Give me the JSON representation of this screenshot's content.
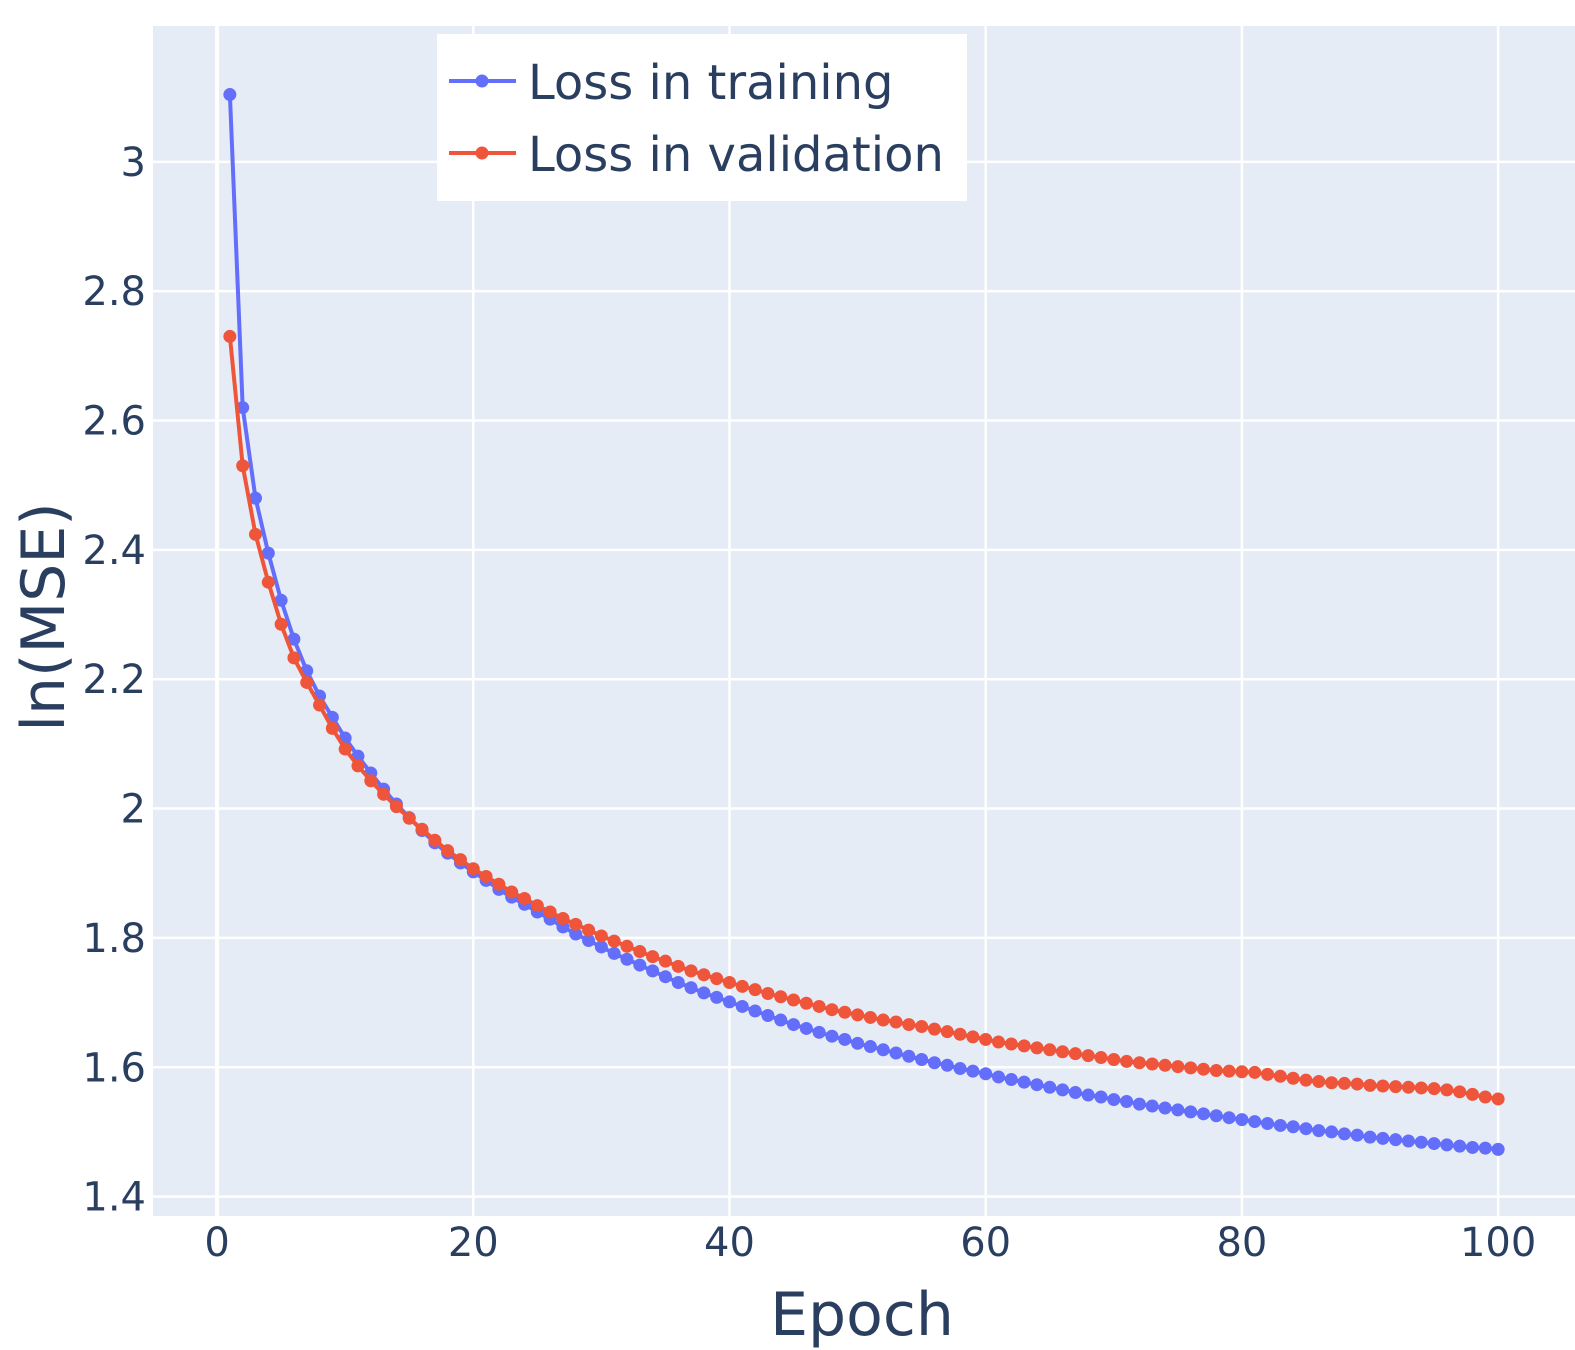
{
  "chart_data": {
    "type": "line",
    "xlabel": "Epoch",
    "ylabel": "ln(MSE)",
    "xlim": [
      -5,
      106
    ],
    "ylim": [
      1.37,
      3.21
    ],
    "x_ticks": [
      0,
      20,
      40,
      60,
      80,
      100
    ],
    "x_tick_labels": [
      "0",
      "20",
      "40",
      "60",
      "80",
      "100"
    ],
    "y_ticks": [
      1.4,
      1.6,
      1.8,
      2.0,
      2.2,
      2.4,
      2.6,
      2.8,
      3.0
    ],
    "y_tick_labels": [
      "1.4",
      "1.6",
      "1.8",
      "2",
      "2.2",
      "2.4",
      "2.6",
      "2.8",
      "3"
    ],
    "grid": true,
    "legend_position": "top-center",
    "x": [
      1,
      2,
      3,
      4,
      5,
      6,
      7,
      8,
      9,
      10,
      11,
      12,
      13,
      14,
      15,
      16,
      17,
      18,
      19,
      20,
      21,
      22,
      23,
      24,
      25,
      26,
      27,
      28,
      29,
      30,
      31,
      32,
      33,
      34,
      35,
      36,
      37,
      38,
      39,
      40,
      41,
      42,
      43,
      44,
      45,
      46,
      47,
      48,
      49,
      50,
      51,
      52,
      53,
      54,
      55,
      56,
      57,
      58,
      59,
      60,
      61,
      62,
      63,
      64,
      65,
      66,
      67,
      68,
      69,
      70,
      71,
      72,
      73,
      74,
      75,
      76,
      77,
      78,
      79,
      80,
      81,
      82,
      83,
      84,
      85,
      86,
      87,
      88,
      89,
      90,
      91,
      92,
      93,
      94,
      95,
      96,
      97,
      98,
      99,
      100
    ],
    "series": [
      {
        "name": "Loss in training",
        "color": "#636efa",
        "values": [
          3.104,
          2.62,
          2.48,
          2.395,
          2.322,
          2.262,
          2.213,
          2.174,
          2.141,
          2.109,
          2.081,
          2.055,
          2.03,
          2.007,
          1.986,
          1.966,
          1.947,
          1.931,
          1.916,
          1.902,
          1.889,
          1.875,
          1.863,
          1.852,
          1.84,
          1.829,
          1.817,
          1.806,
          1.796,
          1.786,
          1.776,
          1.767,
          1.758,
          1.749,
          1.74,
          1.731,
          1.723,
          1.715,
          1.708,
          1.701,
          1.694,
          1.687,
          1.68,
          1.673,
          1.666,
          1.66,
          1.654,
          1.648,
          1.643,
          1.637,
          1.632,
          1.627,
          1.622,
          1.617,
          1.612,
          1.607,
          1.603,
          1.598,
          1.594,
          1.59,
          1.585,
          1.581,
          1.577,
          1.573,
          1.569,
          1.565,
          1.561,
          1.557,
          1.554,
          1.55,
          1.547,
          1.543,
          1.54,
          1.537,
          1.534,
          1.531,
          1.528,
          1.525,
          1.522,
          1.519,
          1.516,
          1.513,
          1.51,
          1.508,
          1.505,
          1.502,
          1.5,
          1.497,
          1.495,
          1.492,
          1.49,
          1.488,
          1.486,
          1.484,
          1.482,
          1.48,
          1.478,
          1.476,
          1.475,
          1.473
        ]
      },
      {
        "name": "Loss in validation",
        "color": "#ef553b",
        "values": [
          2.73,
          2.53,
          2.424,
          2.35,
          2.285,
          2.233,
          2.195,
          2.16,
          2.124,
          2.092,
          2.066,
          2.043,
          2.022,
          2.003,
          1.985,
          1.968,
          1.951,
          1.935,
          1.921,
          1.907,
          1.895,
          1.883,
          1.871,
          1.861,
          1.85,
          1.84,
          1.83,
          1.821,
          1.812,
          1.803,
          1.795,
          1.787,
          1.779,
          1.771,
          1.764,
          1.756,
          1.749,
          1.743,
          1.737,
          1.731,
          1.725,
          1.72,
          1.714,
          1.709,
          1.704,
          1.699,
          1.694,
          1.689,
          1.685,
          1.681,
          1.677,
          1.673,
          1.67,
          1.666,
          1.663,
          1.659,
          1.655,
          1.651,
          1.647,
          1.643,
          1.639,
          1.636,
          1.633,
          1.63,
          1.627,
          1.624,
          1.621,
          1.618,
          1.615,
          1.612,
          1.609,
          1.607,
          1.605,
          1.603,
          1.601,
          1.599,
          1.597,
          1.595,
          1.594,
          1.593,
          1.592,
          1.589,
          1.586,
          1.583,
          1.58,
          1.578,
          1.576,
          1.575,
          1.574,
          1.572,
          1.571,
          1.57,
          1.569,
          1.568,
          1.567,
          1.565,
          1.562,
          1.558,
          1.554,
          1.551
        ]
      }
    ]
  }
}
